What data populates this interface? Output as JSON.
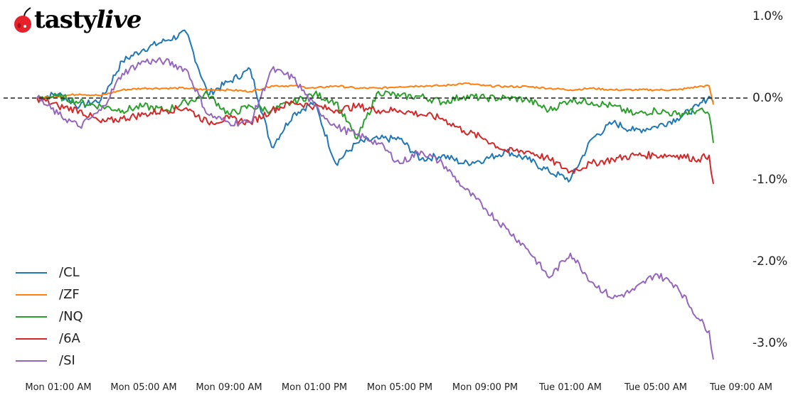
{
  "brand": {
    "logo_text_bold": "tasty",
    "logo_text_italic": "live",
    "logo_icon": "cherry-icon",
    "cherry_color": "#e8222b"
  },
  "chart_data": {
    "type": "line",
    "title": "",
    "xlabel": "",
    "ylabel": "",
    "ylim": [
      -3.2,
      1.0
    ],
    "y_axis_position": "right",
    "grid": false,
    "legend_position": "lower left",
    "reference_line": {
      "y": 0.0,
      "style": "dashed",
      "color": "#222222"
    },
    "y_ticks": [
      {
        "value": 1.0,
        "label": "1.0%"
      },
      {
        "value": 0.0,
        "label": "0.0%"
      },
      {
        "value": -1.0,
        "label": "-1.0%"
      },
      {
        "value": -2.0,
        "label": "-2.0%"
      },
      {
        "value": -3.0,
        "label": "-3.0%"
      }
    ],
    "x_ticks": [
      {
        "hour": 1,
        "label": "Mon 01:00 AM"
      },
      {
        "hour": 5,
        "label": "Mon 05:00 AM"
      },
      {
        "hour": 9,
        "label": "Mon 09:00 AM"
      },
      {
        "hour": 13,
        "label": "Mon 01:00 PM"
      },
      {
        "hour": 17,
        "label": "Mon 05:00 PM"
      },
      {
        "hour": 21,
        "label": "Mon 09:00 PM"
      },
      {
        "hour": 25,
        "label": "Tue 01:00 AM"
      },
      {
        "hour": 29,
        "label": "Tue 05:00 AM"
      },
      {
        "hour": 33,
        "label": "Tue 09:00 AM"
      }
    ],
    "x_unit": "hours since Mon 00:00",
    "x": [
      0,
      1,
      2,
      3,
      4,
      5,
      6,
      7,
      8,
      9,
      10,
      11,
      12,
      13,
      14,
      15,
      16,
      17,
      18,
      19,
      20,
      21,
      22,
      23,
      24,
      25,
      26,
      27,
      28,
      29,
      30,
      31,
      31.5,
      31.7
    ],
    "series": [
      {
        "name": "/CL",
        "color": "#1f77b4",
        "values": [
          0.0,
          0.05,
          -0.1,
          -0.02,
          0.45,
          0.6,
          0.7,
          0.8,
          0.05,
          0.2,
          0.35,
          -0.6,
          -0.2,
          -0.05,
          -0.8,
          -0.55,
          -0.5,
          -0.5,
          -0.75,
          -0.7,
          -0.8,
          -0.75,
          -0.65,
          -0.75,
          -0.9,
          -1.0,
          -0.5,
          -0.3,
          -0.4,
          -0.35,
          -0.25,
          -0.1,
          0.02,
          -0.05
        ]
      },
      {
        "name": "/ZF",
        "color": "#ff7f0e",
        "values": [
          0.0,
          0.02,
          0.05,
          0.03,
          0.1,
          0.12,
          0.12,
          0.12,
          0.1,
          0.1,
          0.08,
          0.15,
          0.15,
          0.12,
          0.15,
          0.12,
          0.12,
          0.14,
          0.15,
          0.15,
          0.18,
          0.15,
          0.14,
          0.14,
          0.12,
          0.1,
          0.12,
          0.1,
          0.1,
          0.1,
          0.1,
          0.14,
          0.15,
          -0.08
        ]
      },
      {
        "name": "/NQ",
        "color": "#2ca02c",
        "values": [
          0.0,
          0.02,
          -0.05,
          -0.1,
          -0.15,
          -0.1,
          -0.15,
          -0.05,
          0.05,
          -0.2,
          -0.1,
          -0.15,
          -0.05,
          0.05,
          -0.05,
          -0.5,
          0.08,
          0.02,
          0.02,
          -0.05,
          0.02,
          0.0,
          0.0,
          -0.02,
          -0.15,
          -0.02,
          -0.05,
          -0.1,
          -0.2,
          -0.15,
          -0.2,
          -0.15,
          -0.2,
          -0.55
        ]
      },
      {
        "name": "/6A",
        "color": "#d62728",
        "values": [
          0.0,
          -0.1,
          -0.15,
          -0.3,
          -0.25,
          -0.2,
          -0.15,
          -0.12,
          -0.3,
          -0.25,
          -0.3,
          -0.15,
          -0.05,
          -0.1,
          -0.15,
          -0.1,
          -0.15,
          -0.15,
          -0.2,
          -0.25,
          -0.4,
          -0.5,
          -0.65,
          -0.65,
          -0.75,
          -0.9,
          -0.8,
          -0.75,
          -0.7,
          -0.7,
          -0.7,
          -0.75,
          -0.7,
          -1.05
        ]
      },
      {
        "name": "/SI",
        "color": "#9467bd",
        "values": [
          0.0,
          -0.2,
          -0.35,
          -0.15,
          0.3,
          0.45,
          0.45,
          0.35,
          -0.2,
          -0.3,
          -0.3,
          0.35,
          0.25,
          -0.1,
          -0.35,
          -0.45,
          -0.55,
          -0.8,
          -0.65,
          -0.8,
          -1.1,
          -1.35,
          -1.6,
          -1.85,
          -2.2,
          -1.9,
          -2.25,
          -2.45,
          -2.35,
          -2.15,
          -2.3,
          -2.7,
          -2.85,
          -3.2
        ]
      }
    ]
  },
  "legend": {
    "items": [
      {
        "label": "/CL",
        "color": "#1f77b4"
      },
      {
        "label": "/ZF",
        "color": "#ff7f0e"
      },
      {
        "label": "/NQ",
        "color": "#2ca02c"
      },
      {
        "label": "/6A",
        "color": "#d62728"
      },
      {
        "label": "/SI",
        "color": "#9467bd"
      }
    ]
  }
}
